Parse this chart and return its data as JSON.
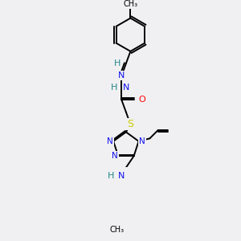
{
  "bg_color": "#f0f0f2",
  "atom_colors": {
    "C": "#000000",
    "N": "#1010ee",
    "O": "#ff0000",
    "S": "#cccc00",
    "H": "#228888"
  },
  "bond_color": "#000000",
  "bond_width": 1.4
}
